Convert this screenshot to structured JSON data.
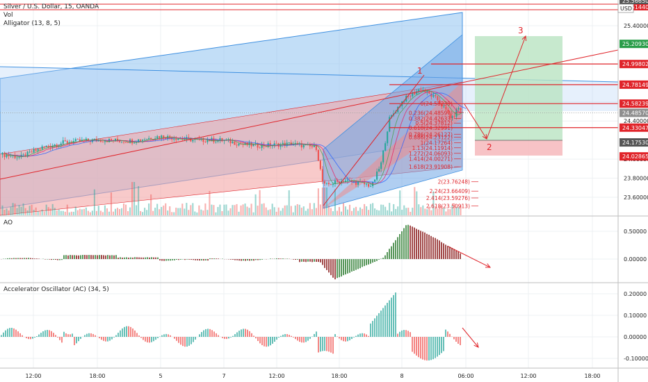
{
  "header": {
    "title": "Silver / U.S. Dollar, 15, OANDA",
    "vol_label": "Vol",
    "alligator_label": "Alligator (13, 8, 5)"
  },
  "chart_data": [
    {
      "type": "candlestick",
      "panel": "price",
      "title": "Silver / U.S. Dollar, 15, OANDA",
      "ylim": [
        23.48,
        25.62
      ],
      "price_axis_ticks": [
        25.4,
        25.0,
        24.6,
        24.4,
        24.0,
        23.8,
        23.6
      ],
      "price_axis_labels": [
        "25.40000",
        "25.00000",
        "24.60000",
        "24.40000",
        "24.00000",
        "23.80000",
        "23.60000"
      ],
      "currency_badge": "USD",
      "price_tags": [
        {
          "value": 25.2093,
          "label": "25.20930",
          "color": "#2a9d4a"
        },
        {
          "value": 24.99802,
          "label": "24.99802",
          "color": "#e0242a"
        },
        {
          "value": 24.78149,
          "label": "24.78149",
          "color": "#e0242a"
        },
        {
          "value": 24.58239,
          "label": "24.58239",
          "color": "#e0242a"
        },
        {
          "value": 24.4857,
          "label": "24.48570",
          "color": "#8e8e8e"
        },
        {
          "value": 24.33047,
          "label": "24.33047",
          "color": "#e0242a"
        },
        {
          "value": 24.1753,
          "label": "24.17530",
          "color": "#555555"
        },
        {
          "value": 24.02865,
          "label": "24.02865",
          "color": "#e0242a"
        }
      ],
      "fib_levels": [
        {
          "value": 24.58239,
          "label": "0(24.58239)"
        },
        {
          "value": 24.48597,
          "label": "0.236(24.48597)"
        },
        {
          "value": 24.42633,
          "label": "0.382(24.42633)"
        },
        {
          "value": 24.37812,
          "label": "0.5(24.37812)"
        },
        {
          "value": 24.32991,
          "label": "0.618(24.32991)"
        },
        {
          "value": 24.26127,
          "label": "0.786(24.26127)"
        },
        {
          "value": 24.23122,
          "label": "0.886(24.23122)"
        },
        {
          "value": 24.17264,
          "label": "1(24.17264)"
        },
        {
          "value": 24.11914,
          "label": "1.13(24.11914)"
        },
        {
          "value": 24.06093,
          "label": "1.272(24.06093)"
        },
        {
          "value": 24.00271,
          "label": "1.414(24.00271)"
        },
        {
          "value": 23.91908,
          "label": "1.618(23.91908)"
        },
        {
          "value": 23.76248,
          "label": "2(23.76248)"
        },
        {
          "value": 23.66409,
          "label": "2.24(23.66409)"
        },
        {
          "value": 23.59276,
          "label": "2.414(23.59276)"
        },
        {
          "value": 23.50913,
          "label": "2.618(23.50913)"
        }
      ],
      "annotations": [
        "1",
        "2",
        "3"
      ],
      "top_tags": [
        "25.56650",
        "25.51440"
      ]
    },
    {
      "type": "histogram",
      "panel": "indicator",
      "title": "AO",
      "ylim": [
        -0.13,
        0.26
      ],
      "axis_labels": [
        "0.50000",
        "0.00000"
      ],
      "axis_values": [
        0.5,
        0.0
      ]
    },
    {
      "type": "histogram",
      "panel": "indicator",
      "title": "Accelerator Oscillator (AC) (34, 5)",
      "ylim": [
        -0.13,
        0.24
      ],
      "axis_labels": [
        "0.20000",
        "0.10000",
        "0.00000",
        "-0.10000"
      ],
      "axis_values": [
        0.2,
        0.1,
        0.0,
        -0.1
      ]
    }
  ],
  "time_axis": {
    "labels": [
      "12:00",
      "18:00",
      "5",
      "12:00",
      "18:00",
      "7",
      "12:00",
      "18:00",
      "8",
      "12:00",
      "18:00",
      "06:00",
      "12:00",
      "18:00"
    ]
  },
  "colors": {
    "up": "#26a69a",
    "down": "#ef5350",
    "ao_up": "#2e7d32",
    "ao_down": "#8b1d1d",
    "accent_red": "#e0242a"
  }
}
